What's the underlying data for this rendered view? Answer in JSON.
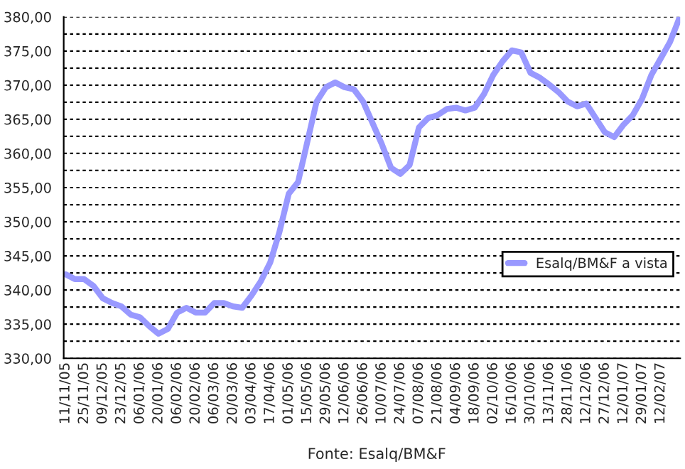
{
  "chart_data": {
    "type": "line",
    "categories": [
      "11/11/05",
      null,
      "25/11/05",
      null,
      "09/12/05",
      null,
      "23/12/05",
      null,
      "06/01/06",
      null,
      "20/01/06",
      null,
      "06/02/06",
      null,
      "20/02/06",
      null,
      "06/03/06",
      null,
      "20/03/06",
      null,
      "03/04/06",
      null,
      "17/04/06",
      null,
      "01/05/06",
      null,
      "15/05/06",
      null,
      "29/05/06",
      null,
      "12/06/06",
      null,
      "26/06/06",
      null,
      "10/07/06",
      null,
      "24/07/06",
      null,
      "07/08/06",
      null,
      "21/08/06",
      null,
      "04/09/06",
      null,
      "18/09/06",
      null,
      "02/10/06",
      null,
      "16/10/06",
      null,
      "30/10/06",
      null,
      "13/11/06",
      null,
      "28/11/06",
      null,
      "12/12/06",
      null,
      "27/12/06",
      null,
      "12/01/07",
      null,
      "29/01/07",
      null,
      "12/02/07",
      null,
      null
    ],
    "series": [
      {
        "name": "Esalq/BM&F a vista",
        "color": "#9999ff",
        "values": [
          342.3,
          341.6,
          341.6,
          340.6,
          338.8,
          338.1,
          337.6,
          336.4,
          336.0,
          334.7,
          333.6,
          334.3,
          336.7,
          337.4,
          336.7,
          336.7,
          338.1,
          338.1,
          337.6,
          337.4,
          339.2,
          341.3,
          344.0,
          348.5,
          354.1,
          355.8,
          361.7,
          367.6,
          369.7,
          370.4,
          369.7,
          369.4,
          367.6,
          364.5,
          361.4,
          357.9,
          357.0,
          358.3,
          363.8,
          365.2,
          365.6,
          366.5,
          366.7,
          366.3,
          366.7,
          368.7,
          371.5,
          373.5,
          375.1,
          374.8,
          371.8,
          371.1,
          370.1,
          369.0,
          367.6,
          366.9,
          367.3,
          365.2,
          363.1,
          362.4,
          364.2,
          365.6,
          368.0,
          371.5,
          373.9,
          376.3,
          379.8
        ]
      }
    ],
    "ylim": [
      330,
      380
    ],
    "yticks": [
      {
        "value": 330,
        "label": "330,00"
      },
      {
        "value": 332.5,
        "label": null
      },
      {
        "value": 335,
        "label": "335,00"
      },
      {
        "value": 337.5,
        "label": null
      },
      {
        "value": 340,
        "label": "340,00"
      },
      {
        "value": 342.5,
        "label": null
      },
      {
        "value": 345,
        "label": "345,00"
      },
      {
        "value": 347.5,
        "label": null
      },
      {
        "value": 350,
        "label": "350,00"
      },
      {
        "value": 352.5,
        "label": null
      },
      {
        "value": 355,
        "label": "355,00"
      },
      {
        "value": 357.5,
        "label": null
      },
      {
        "value": 360,
        "label": "360,00"
      },
      {
        "value": 362.5,
        "label": null
      },
      {
        "value": 365,
        "label": "365,00"
      },
      {
        "value": 367.5,
        "label": null
      },
      {
        "value": 370,
        "label": "370,00"
      },
      {
        "value": 372.5,
        "label": null
      },
      {
        "value": 375,
        "label": "375,00"
      },
      {
        "value": 377.5,
        "label": null
      },
      {
        "value": 380,
        "label": "380,00"
      }
    ],
    "grid": "y",
    "legend": "bottom right",
    "line_style": "solid",
    "marker": "none",
    "annotations": [
      "Fonte: Esalq/BM&F"
    ]
  }
}
